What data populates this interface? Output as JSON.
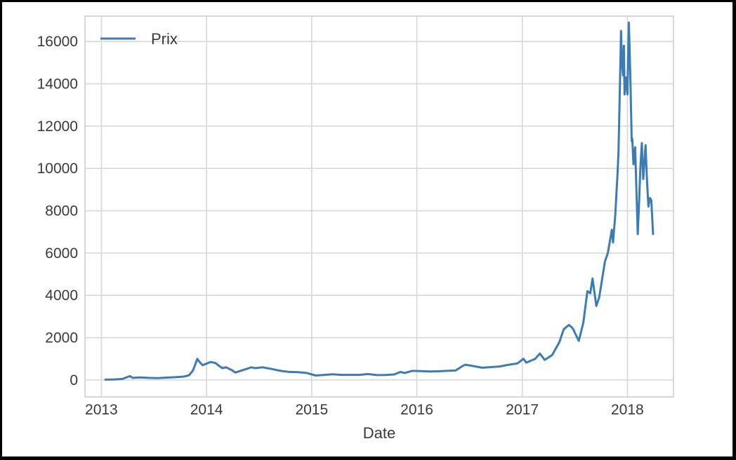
{
  "chart_data": {
    "type": "line",
    "title": "",
    "xlabel": "Date",
    "ylabel": "",
    "x_ticks": [
      "2013",
      "2014",
      "2015",
      "2016",
      "2017",
      "2018"
    ],
    "y_ticks": [
      "0",
      "2000",
      "4000",
      "6000",
      "8000",
      "10000",
      "12000",
      "14000",
      "16000"
    ],
    "xlim": [
      "2012-11-05",
      "2018-06-10"
    ],
    "ylim": [
      -800,
      17200
    ],
    "grid": true,
    "legend_position": "upper-left",
    "colors": {
      "line": "#3a7cb3",
      "grid": "#d7d7d7",
      "frame": "#cfcfcf"
    },
    "series": [
      {
        "name": "Prix",
        "x": [
          "2013-01-15",
          "2013-02-15",
          "2013-03-15",
          "2013-04-10",
          "2013-04-20",
          "2013-05-15",
          "2013-06-15",
          "2013-07-15",
          "2013-08-15",
          "2013-09-15",
          "2013-10-15",
          "2013-11-01",
          "2013-11-15",
          "2013-11-30",
          "2013-12-05",
          "2013-12-18",
          "2013-12-28",
          "2014-01-15",
          "2014-02-01",
          "2014-02-15",
          "2014-02-25",
          "2014-03-10",
          "2014-04-01",
          "2014-04-11",
          "2014-05-01",
          "2014-05-20",
          "2014-06-05",
          "2014-06-20",
          "2014-07-15",
          "2014-08-15",
          "2014-09-15",
          "2014-10-15",
          "2014-11-15",
          "2014-12-15",
          "2015-01-15",
          "2015-02-15",
          "2015-03-15",
          "2015-04-15",
          "2015-05-15",
          "2015-06-15",
          "2015-07-15",
          "2015-08-15",
          "2015-09-15",
          "2015-10-15",
          "2015-11-05",
          "2015-11-20",
          "2015-12-15",
          "2016-01-15",
          "2016-02-15",
          "2016-03-15",
          "2016-04-15",
          "2016-05-15",
          "2016-06-10",
          "2016-06-18",
          "2016-07-15",
          "2016-08-15",
          "2016-09-15",
          "2016-10-15",
          "2016-11-15",
          "2016-12-15",
          "2017-01-05",
          "2017-01-15",
          "2017-02-15",
          "2017-03-03",
          "2017-03-20",
          "2017-04-15",
          "2017-05-10",
          "2017-05-25",
          "2017-06-12",
          "2017-06-25",
          "2017-07-16",
          "2017-08-01",
          "2017-08-15",
          "2017-08-25",
          "2017-09-02",
          "2017-09-15",
          "2017-09-25",
          "2017-10-15",
          "2017-10-25",
          "2017-11-08",
          "2017-11-12",
          "2017-11-20",
          "2017-11-28",
          "2017-12-01",
          "2017-12-07",
          "2017-12-10",
          "2017-12-13",
          "2017-12-17",
          "2017-12-20",
          "2017-12-22",
          "2017-12-25",
          "2017-12-28",
          "2018-01-01",
          "2018-01-06",
          "2018-01-09",
          "2018-01-12",
          "2018-01-16",
          "2018-01-18",
          "2018-01-22",
          "2018-01-28",
          "2018-02-01",
          "2018-02-06",
          "2018-02-10",
          "2018-02-15",
          "2018-02-20",
          "2018-02-25",
          "2018-03-01",
          "2018-03-05",
          "2018-03-10",
          "2018-03-15",
          "2018-03-20",
          "2018-03-25",
          "2018-03-31"
        ],
        "y": [
          15,
          25,
          50,
          180,
          100,
          120,
          100,
          90,
          110,
          130,
          160,
          220,
          450,
          1000,
          900,
          700,
          750,
          850,
          800,
          650,
          560,
          600,
          450,
          350,
          440,
          520,
          600,
          560,
          600,
          520,
          430,
          380,
          370,
          330,
          210,
          240,
          270,
          240,
          240,
          240,
          280,
          230,
          235,
          260,
          380,
          330,
          430,
          420,
          400,
          410,
          430,
          450,
          680,
          720,
          660,
          580,
          610,
          640,
          720,
          780,
          1000,
          820,
          1000,
          1250,
          950,
          1180,
          1800,
          2400,
          2600,
          2450,
          1850,
          2700,
          4200,
          4100,
          4800,
          3500,
          3900,
          5600,
          6000,
          7100,
          6500,
          7800,
          9800,
          10800,
          14500,
          16500,
          15000,
          14400,
          15800,
          13500,
          14000,
          14300,
          13500,
          16900,
          15400,
          13800,
          11300,
          11400,
          10200,
          11000,
          9100,
          6900,
          8200,
          10000,
          11200,
          9500,
          10300,
          11100,
          9400,
          8200,
          8600,
          8500,
          6900
        ]
      }
    ]
  }
}
